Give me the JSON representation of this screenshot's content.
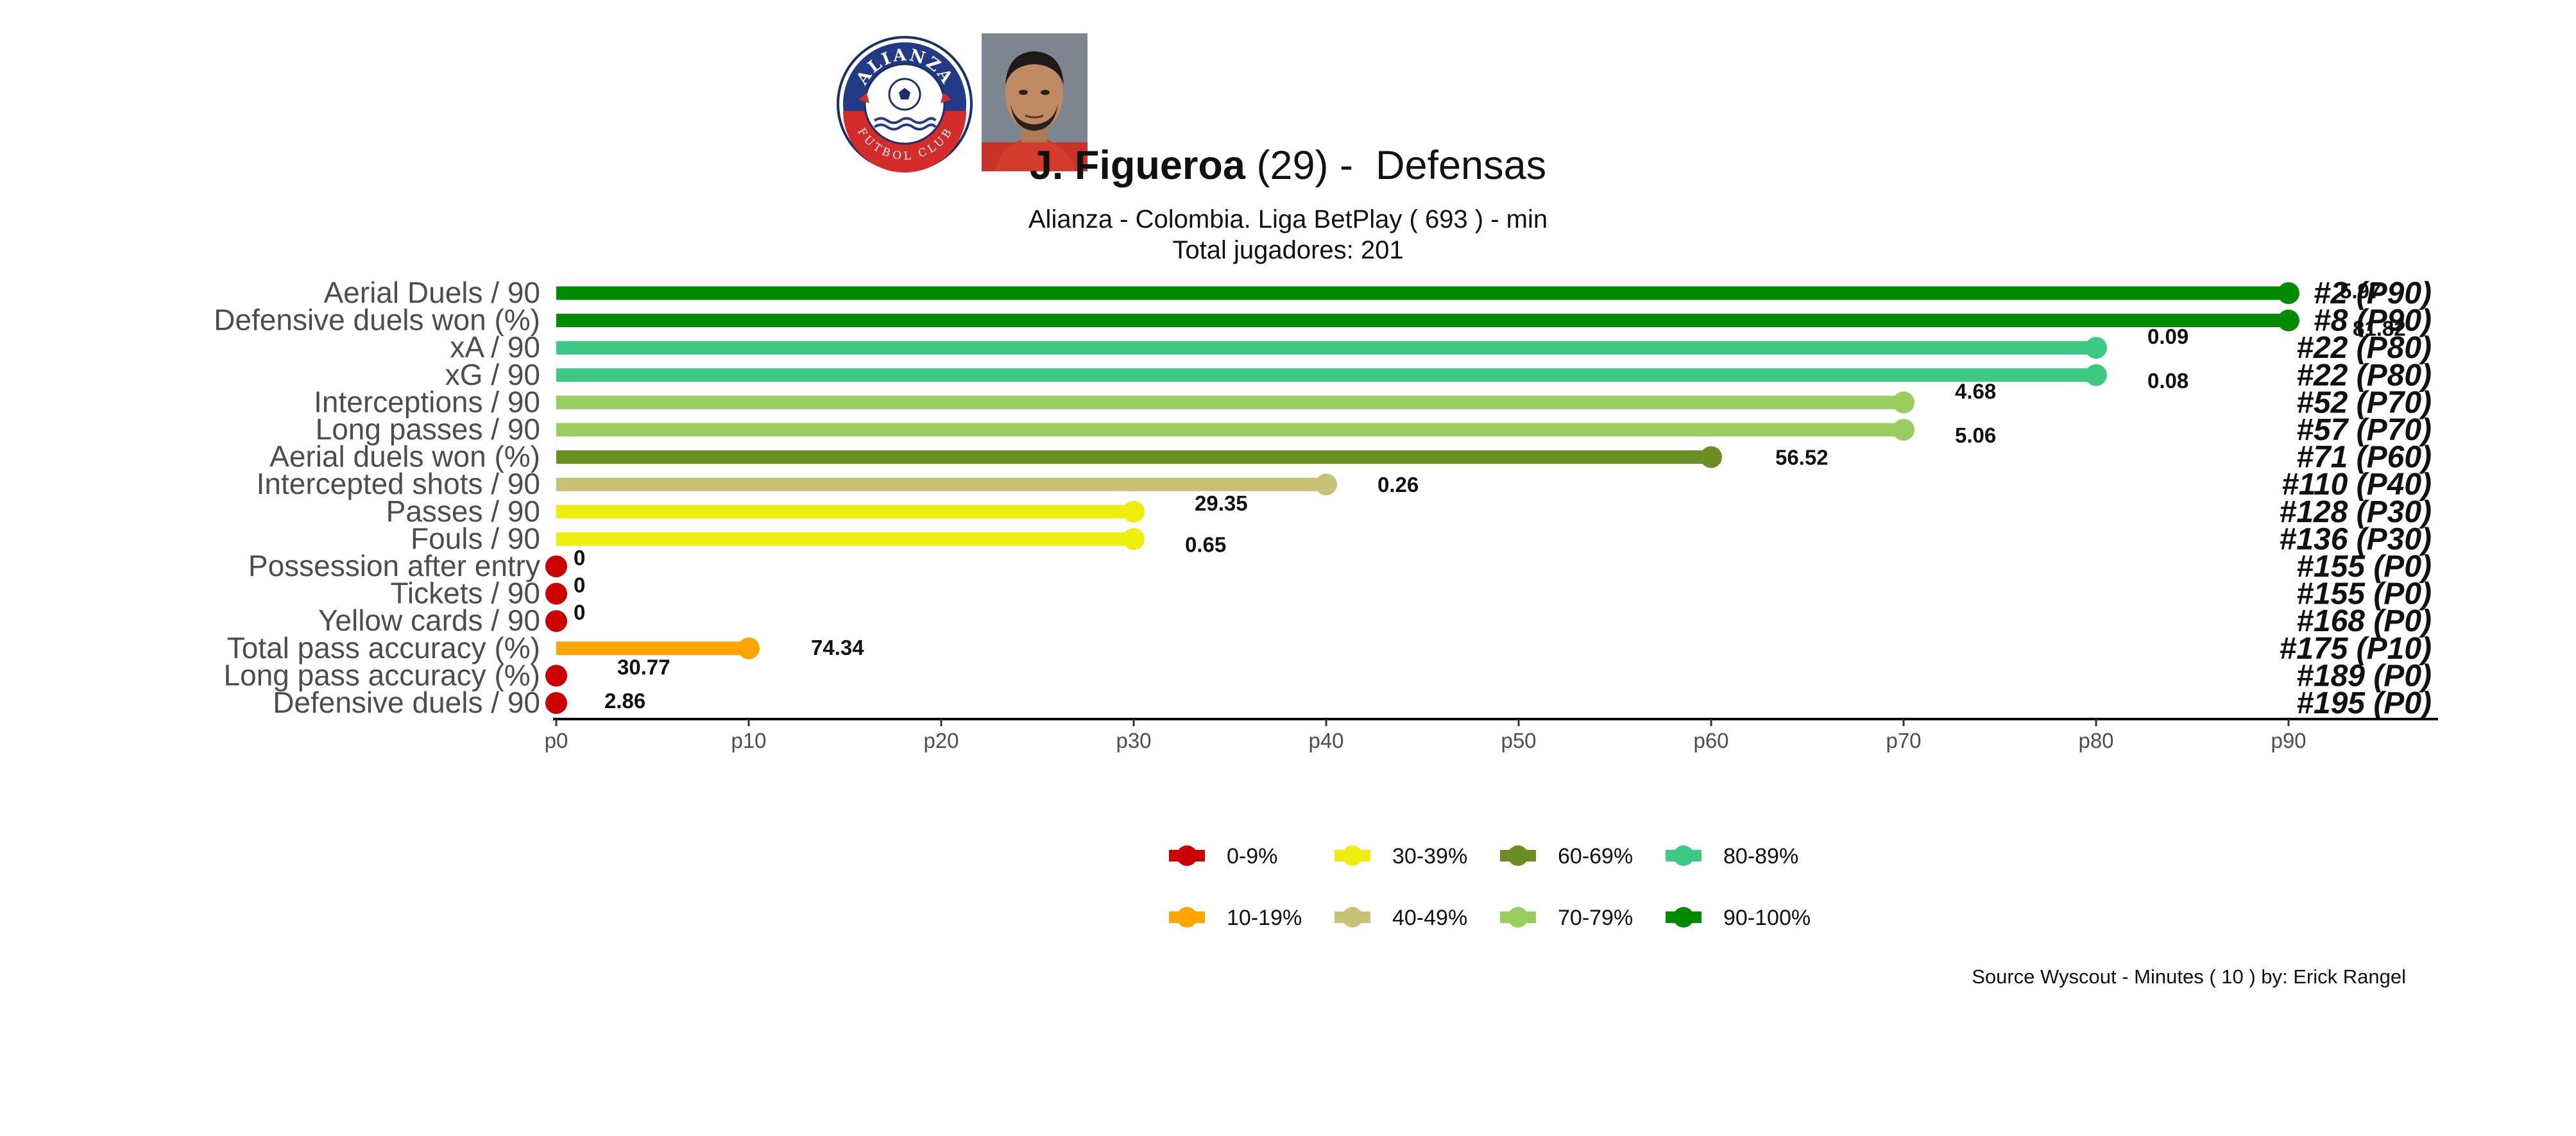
{
  "header": {
    "player_name": "J. Figueroa",
    "age_text": "(29)",
    "separator": " -  ",
    "position": "Defensas",
    "subtitle_line1": "Alianza  -  Colombia. Liga BetPlay  ( 693 ) - min",
    "subtitle_line2": "Total jugadores:  201",
    "logo_text_top": "ALIANZA",
    "logo_text_bottom": "FUTBOL CLUB"
  },
  "chart_data": {
    "type": "lollipop",
    "x_ticks": [
      "p0",
      "p10",
      "p20",
      "p30",
      "p40",
      "p50",
      "p60",
      "p70",
      "p80",
      "p90"
    ],
    "xlim": [
      0,
      90
    ],
    "metrics": [
      {
        "label": "Aerial Duels / 90",
        "percentile": 90,
        "value": "5.97",
        "rank": "#2 (P90)",
        "color": "#008B00"
      },
      {
        "label": "Defensive duels won (%)",
        "percentile": 90,
        "value": "81.82",
        "rank": "#8 (P90)",
        "color": "#008B00"
      },
      {
        "label": "xA / 90",
        "percentile": 80,
        "value": "0.09",
        "rank": "#22 (P80)",
        "color": "#3DC984"
      },
      {
        "label": "xG / 90",
        "percentile": 80,
        "value": "0.08",
        "rank": "#22 (P80)",
        "color": "#3DC984"
      },
      {
        "label": "Interceptions / 90",
        "percentile": 70,
        "value": "4.68",
        "rank": "#52 (P70)",
        "color": "#9ACD5F"
      },
      {
        "label": "Long passes / 90",
        "percentile": 70,
        "value": "5.06",
        "rank": "#57 (P70)",
        "color": "#9ACD5F"
      },
      {
        "label": "Aerial duels won (%)",
        "percentile": 60,
        "value": "56.52",
        "rank": "#71 (P60)",
        "color": "#6B8E23"
      },
      {
        "label": "Intercepted shots / 90",
        "percentile": 40,
        "value": "0.26",
        "rank": "#110 (P40)",
        "color": "#C8C276"
      },
      {
        "label": "Passes / 90",
        "percentile": 30,
        "value": "29.35",
        "rank": "#128 (P30)",
        "color": "#EEEE0E"
      },
      {
        "label": "Fouls / 90",
        "percentile": 30,
        "value": "0.65",
        "rank": "#136 (P30)",
        "color": "#EEEE0E"
      },
      {
        "label": "Possession after entry",
        "percentile": 0,
        "value": "0",
        "rank": "#155 (P0)",
        "color": "#CC0000"
      },
      {
        "label": "Tickets / 90",
        "percentile": 0,
        "value": "0",
        "rank": "#155 (P0)",
        "color": "#CC0000"
      },
      {
        "label": "Yellow cards / 90",
        "percentile": 0,
        "value": "0",
        "rank": "#168 (P0)",
        "color": "#CC0000"
      },
      {
        "label": "Total pass accuracy (%)",
        "percentile": 10,
        "value": "74.34",
        "rank": "#175 (P10)",
        "color": "#FFA500"
      },
      {
        "label": "Long pass accuracy (%)",
        "percentile": 0,
        "value": "30.77",
        "rank": "#189 (P0)",
        "color": "#CC0000"
      },
      {
        "label": "Defensive duels / 90",
        "percentile": 0,
        "value": "2.86",
        "rank": "#195 (P0)",
        "color": "#CC0000"
      }
    ],
    "legend": [
      {
        "label": "0-9%",
        "color": "#CC0000"
      },
      {
        "label": "10-19%",
        "color": "#FFA500"
      },
      {
        "label": "30-39%",
        "color": "#EEEE0E"
      },
      {
        "label": "40-49%",
        "color": "#C8C276"
      },
      {
        "label": "60-69%",
        "color": "#6B8E23"
      },
      {
        "label": "70-79%",
        "color": "#9ACD5F"
      },
      {
        "label": "80-89%",
        "color": "#3DC984"
      },
      {
        "label": "90-100%",
        "color": "#008B00"
      }
    ]
  },
  "footer": {
    "source": "Source Wyscout - Minutes ( 10 ) by: Erick Rangel"
  }
}
